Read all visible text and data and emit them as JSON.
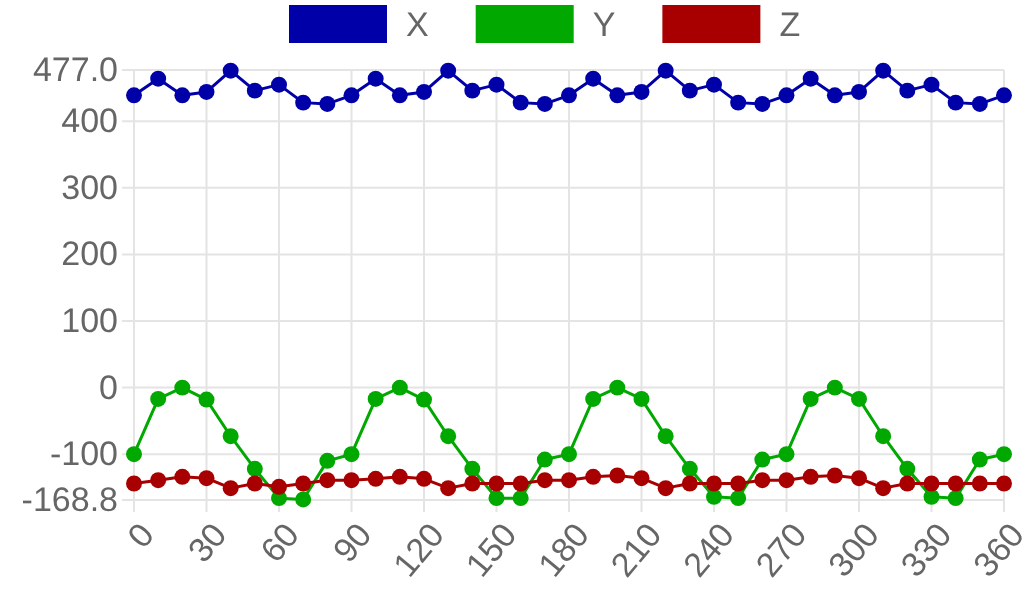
{
  "chart_data": {
    "type": "line",
    "x": [
      0,
      10,
      20,
      30,
      40,
      50,
      60,
      70,
      80,
      90,
      100,
      110,
      120,
      130,
      140,
      150,
      160,
      170,
      180,
      190,
      200,
      210,
      220,
      230,
      240,
      250,
      260,
      270,
      280,
      290,
      300,
      310,
      320,
      330,
      340,
      350,
      360
    ],
    "series": [
      {
        "name": "X",
        "color": "#0000a8",
        "values": [
          439,
          464,
          439,
          444,
          476,
          446,
          455,
          428,
          426,
          439,
          464,
          439,
          444,
          476,
          446,
          455,
          428,
          426,
          439,
          464,
          439,
          444,
          476,
          446,
          455,
          428,
          426,
          439,
          464,
          439,
          444,
          476,
          446,
          455,
          428,
          426,
          439
        ]
      },
      {
        "name": "Y",
        "color": "#00a800",
        "values": [
          -100,
          -17,
          0,
          -18,
          -73,
          -122,
          -166,
          -168,
          -110,
          -100,
          -17,
          0,
          -18,
          -73,
          -122,
          -166,
          -166,
          -108,
          -100,
          -17,
          0,
          -17,
          -73,
          -122,
          -164,
          -166,
          -108,
          -100,
          -17,
          0,
          -17,
          -73,
          -122,
          -164,
          -166,
          -108,
          -100
        ]
      },
      {
        "name": "Z",
        "color": "#a80000",
        "values": [
          -144,
          -139,
          -134,
          -136,
          -151,
          -144,
          -149,
          -144,
          -139,
          -139,
          -137,
          -134,
          -137,
          -151,
          -144,
          -144,
          -144,
          -139,
          -139,
          -134,
          -132,
          -136,
          -151,
          -144,
          -144,
          -144,
          -139,
          -139,
          -134,
          -132,
          -136,
          -151,
          -144,
          -144,
          -144,
          -144,
          -144
        ]
      }
    ],
    "xlim": [
      0,
      360
    ],
    "xticks": [
      0,
      30,
      60,
      90,
      120,
      150,
      180,
      210,
      240,
      270,
      300,
      330,
      360
    ],
    "ylim": [
      -168.8,
      477.0
    ],
    "yticks": [
      {
        "value": -168.8,
        "label": "-168.8"
      },
      -100,
      0,
      100,
      200,
      300,
      400,
      {
        "value": 477.0,
        "label": "477.0"
      }
    ],
    "grid": true,
    "legend": "top",
    "marker": "circle",
    "line_style": "solid"
  }
}
